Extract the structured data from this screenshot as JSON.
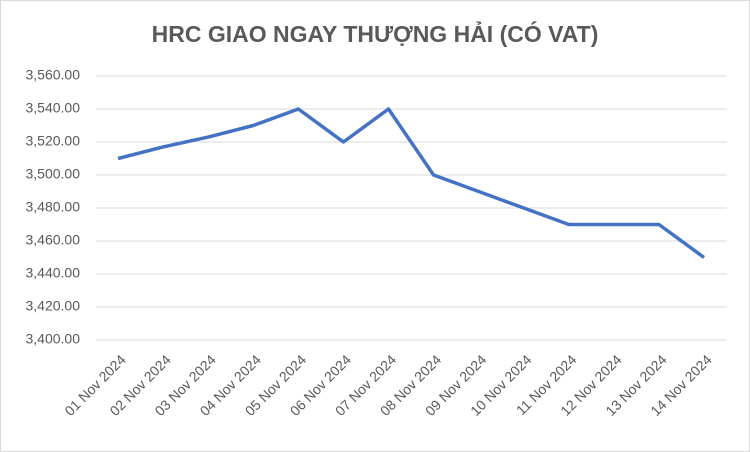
{
  "chart_data": {
    "type": "line",
    "title": "HRC GIAO NGAY THƯỢNG HẢI (CÓ VAT)",
    "categories": [
      "01 Nov 2024",
      "02 Nov 2024",
      "03 Nov 2024",
      "04 Nov 2024",
      "05 Nov 2024",
      "06 Nov 2024",
      "07 Nov 2024",
      "08 Nov 2024",
      "09 Nov 2024",
      "10 Nov 2024",
      "11 Nov 2024",
      "12 Nov 2024",
      "13 Nov 2024",
      "14 Nov 2024"
    ],
    "values": [
      3510,
      3517,
      3523,
      3530,
      3540,
      3520,
      3540,
      3500,
      3490,
      3480,
      3470,
      3470,
      3470,
      3450
    ],
    "color": "#4472c4",
    "ylim": [
      3400,
      3560
    ],
    "yticks": [
      {
        "value": 3400,
        "label": "3,400.00"
      },
      {
        "value": 3420,
        "label": "3,420.00"
      },
      {
        "value": 3440,
        "label": "3,440.00"
      },
      {
        "value": 3460,
        "label": "3,460.00"
      },
      {
        "value": 3480,
        "label": "3,480.00"
      },
      {
        "value": 3500,
        "label": "3,500.00"
      },
      {
        "value": 3520,
        "label": "3,520.00"
      },
      {
        "value": 3540,
        "label": "3,540.00"
      },
      {
        "value": 3560,
        "label": "3,560.00"
      }
    ],
    "grid": true
  }
}
